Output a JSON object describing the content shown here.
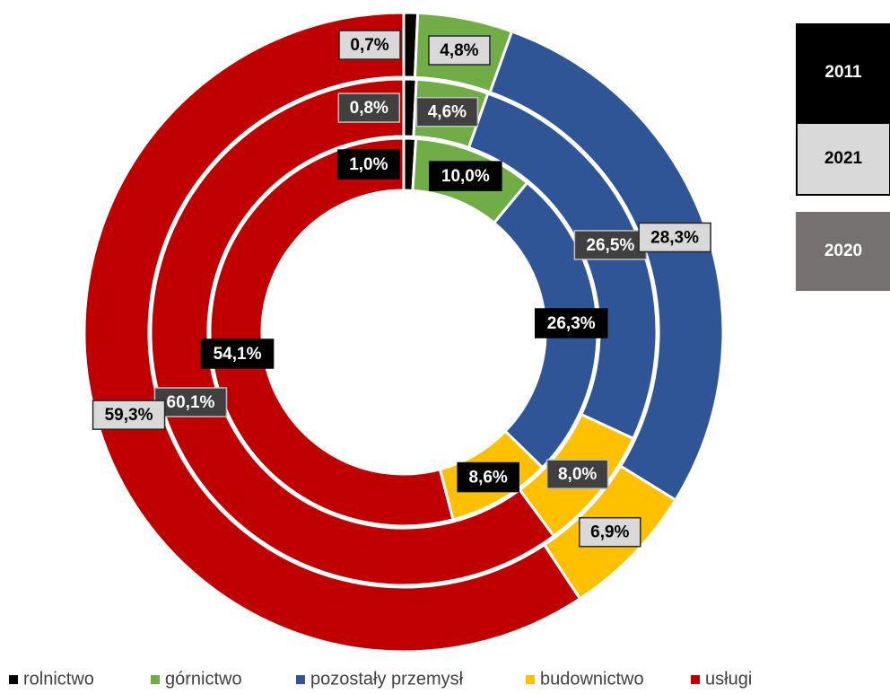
{
  "chart_data": {
    "type": "donut",
    "categories": [
      "rolnictwo",
      "górnictwo",
      "pozostały przemysł",
      "budownictwo",
      "usługi"
    ],
    "colors": [
      "#000000",
      "#70ad47",
      "#2f5597",
      "#ffc000",
      "#c00000"
    ],
    "series": [
      {
        "name": "2011",
        "color": "#000000",
        "values": [
          1.0,
          10.0,
          26.3,
          8.6,
          54.1
        ],
        "value_labels": [
          "1,0%",
          "10,0%",
          "26,3%",
          "8,6%",
          "54,1%"
        ]
      },
      {
        "name": "2020",
        "color": "#767171",
        "values": [
          0.8,
          4.6,
          26.5,
          8.0,
          60.1
        ],
        "value_labels": [
          "0,8%",
          "4,6%",
          "26,5%",
          "8,0%",
          "60,1%"
        ]
      },
      {
        "name": "2021",
        "color": "#d9d9d9",
        "values": [
          0.7,
          4.8,
          28.3,
          6.9,
          59.3
        ],
        "value_labels": [
          "0,7%",
          "4,8%",
          "28,3%",
          "6,9%",
          "59,3%"
        ]
      }
    ]
  }
}
